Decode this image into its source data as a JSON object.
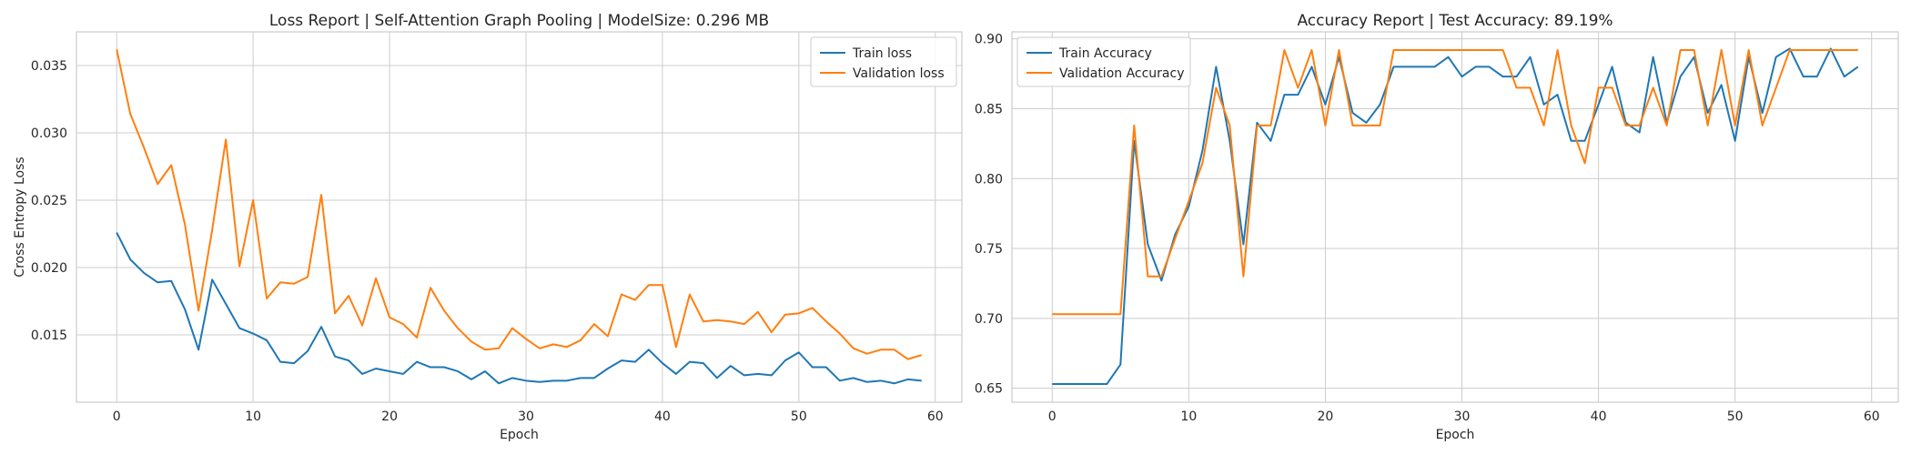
{
  "chart_data": [
    {
      "type": "line",
      "title": "Loss Report | Self-Attention Graph Pooling | ModelSize: 0.296 MB",
      "xlabel": "Epoch",
      "ylabel": "Cross Entropy Loss",
      "xlim": [
        -2.95,
        61.95
      ],
      "ylim": [
        0.01,
        0.0375
      ],
      "xticks": [
        0,
        10,
        20,
        30,
        40,
        50,
        60
      ],
      "yticks": [
        0.015,
        0.02,
        0.025,
        0.03,
        0.035
      ],
      "ytick_labels": [
        "0.015",
        "0.020",
        "0.025",
        "0.030",
        "0.035"
      ],
      "grid": true,
      "legend": "top-right",
      "series": [
        {
          "name": "Train loss",
          "color": "#1f77b4",
          "values": [
            0.0226,
            0.0206,
            0.0196,
            0.0189,
            0.019,
            0.0169,
            0.0139,
            0.0191,
            0.0173,
            0.0155,
            0.0151,
            0.0146,
            0.013,
            0.0129,
            0.0138,
            0.0156,
            0.0134,
            0.0131,
            0.0121,
            0.0125,
            0.0123,
            0.0121,
            0.013,
            0.0126,
            0.0126,
            0.0123,
            0.0117,
            0.0123,
            0.0114,
            0.0118,
            0.0116,
            0.0115,
            0.0116,
            0.0116,
            0.0118,
            0.0118,
            0.0125,
            0.0131,
            0.013,
            0.0139,
            0.0129,
            0.0121,
            0.013,
            0.0129,
            0.0118,
            0.0127,
            0.012,
            0.0121,
            0.012,
            0.0131,
            0.0137,
            0.0126,
            0.0126,
            0.0116,
            0.0118,
            0.0115,
            0.0116,
            0.0114,
            0.0117,
            0.0116
          ]
        },
        {
          "name": "Validation loss",
          "color": "#ff7f0e",
          "values": [
            0.0362,
            0.0314,
            0.0289,
            0.0262,
            0.0276,
            0.0232,
            0.0168,
            0.0228,
            0.0295,
            0.0201,
            0.025,
            0.0177,
            0.0189,
            0.0188,
            0.0193,
            0.0254,
            0.0166,
            0.0179,
            0.0157,
            0.0192,
            0.0163,
            0.0158,
            0.0148,
            0.0185,
            0.0168,
            0.0155,
            0.0145,
            0.0139,
            0.014,
            0.0155,
            0.0147,
            0.014,
            0.0143,
            0.0141,
            0.0146,
            0.0158,
            0.0149,
            0.018,
            0.0176,
            0.0187,
            0.0187,
            0.0141,
            0.018,
            0.016,
            0.0161,
            0.016,
            0.0158,
            0.0167,
            0.0152,
            0.0165,
            0.0166,
            0.017,
            0.016,
            0.0151,
            0.014,
            0.0136,
            0.0139,
            0.0139,
            0.0132,
            0.0135
          ]
        }
      ]
    },
    {
      "type": "line",
      "title": "Accuracy Report | Test Accuracy: 89.19%",
      "xlabel": "Epoch",
      "ylabel": "",
      "xlim": [
        -2.95,
        61.95
      ],
      "ylim": [
        0.64,
        0.905
      ],
      "xticks": [
        0,
        10,
        20,
        30,
        40,
        50,
        60
      ],
      "yticks": [
        0.65,
        0.7,
        0.75,
        0.8,
        0.85,
        0.9
      ],
      "ytick_labels": [
        "0.65",
        "0.70",
        "0.75",
        "0.80",
        "0.85",
        "0.90"
      ],
      "grid": true,
      "legend": "top-left",
      "series": [
        {
          "name": "Train Accuracy",
          "color": "#1f77b4",
          "values": [
            0.653,
            0.653,
            0.653,
            0.653,
            0.653,
            0.667,
            0.827,
            0.753,
            0.727,
            0.76,
            0.78,
            0.82,
            0.88,
            0.827,
            0.753,
            0.84,
            0.827,
            0.86,
            0.86,
            0.88,
            0.853,
            0.887,
            0.847,
            0.84,
            0.853,
            0.88,
            0.88,
            0.88,
            0.88,
            0.887,
            0.873,
            0.88,
            0.88,
            0.873,
            0.873,
            0.887,
            0.853,
            0.86,
            0.827,
            0.827,
            0.853,
            0.88,
            0.84,
            0.833,
            0.887,
            0.84,
            0.873,
            0.887,
            0.847,
            0.867,
            0.827,
            0.887,
            0.847,
            0.887,
            0.893,
            0.873,
            0.873,
            0.893,
            0.873,
            0.88
          ]
        },
        {
          "name": "Validation Accuracy",
          "color": "#ff7f0e",
          "values": [
            0.703,
            0.703,
            0.703,
            0.703,
            0.703,
            0.703,
            0.838,
            0.73,
            0.73,
            0.757,
            0.784,
            0.811,
            0.865,
            0.838,
            0.73,
            0.838,
            0.838,
            0.892,
            0.865,
            0.892,
            0.838,
            0.892,
            0.838,
            0.838,
            0.838,
            0.892,
            0.892,
            0.892,
            0.892,
            0.892,
            0.892,
            0.892,
            0.892,
            0.892,
            0.865,
            0.865,
            0.838,
            0.892,
            0.838,
            0.811,
            0.865,
            0.865,
            0.838,
            0.838,
            0.865,
            0.838,
            0.892,
            0.892,
            0.838,
            0.892,
            0.838,
            0.892,
            0.838,
            0.865,
            0.892,
            0.892,
            0.892,
            0.892,
            0.892,
            0.892
          ]
        }
      ]
    }
  ]
}
